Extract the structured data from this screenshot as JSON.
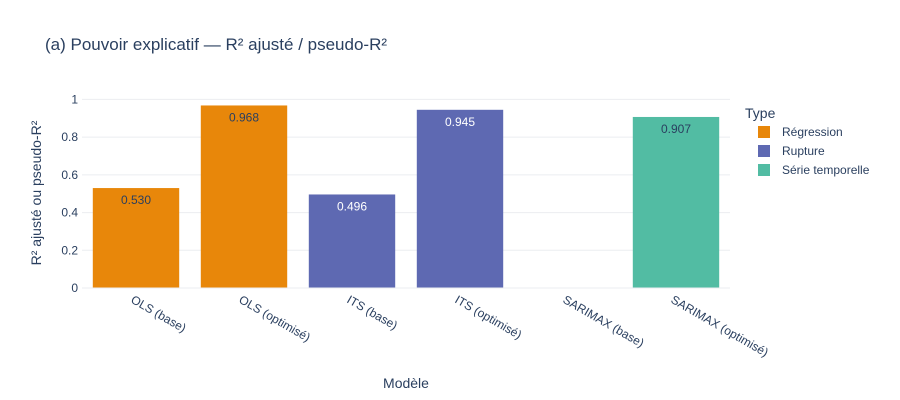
{
  "chart_data": {
    "type": "bar",
    "title": "(a) Pouvoir explicatif — R² ajusté / pseudo-R²",
    "xlabel": "Modèle",
    "ylabel": "R² ajusté ou pseudo-R²",
    "ylim": [
      0,
      1.05
    ],
    "yticks": [
      0,
      0.2,
      0.4,
      0.6,
      0.8,
      1
    ],
    "ytick_labels": [
      "0",
      "0.2",
      "0.4",
      "0.6",
      "0.8",
      "1"
    ],
    "grid": true,
    "legend_title": "Type",
    "legend_position": "right",
    "categories": [
      "OLS (base)",
      "OLS (optimisé)",
      "ITS (base)",
      "ITS (optimisé)",
      "SARIMAX (base)",
      "SARIMAX (optimisé)"
    ],
    "series": [
      {
        "name": "Régression",
        "color": "#E8870A",
        "label_color": "#2a3f5f",
        "values": [
          0.53,
          0.968,
          null,
          null,
          null,
          null
        ]
      },
      {
        "name": "Rupture",
        "color": "#5E69B2",
        "label_color": "#ffffff",
        "values": [
          null,
          null,
          0.496,
          0.945,
          null,
          null
        ]
      },
      {
        "name": "Série temporelle",
        "color": "#52BCA3",
        "label_color": "#2a3f5f",
        "values": [
          null,
          null,
          null,
          null,
          0,
          0.907
        ]
      }
    ],
    "value_labels": [
      "0.530",
      "0.968",
      "0.496",
      "0.945",
      "",
      "0.907"
    ]
  }
}
